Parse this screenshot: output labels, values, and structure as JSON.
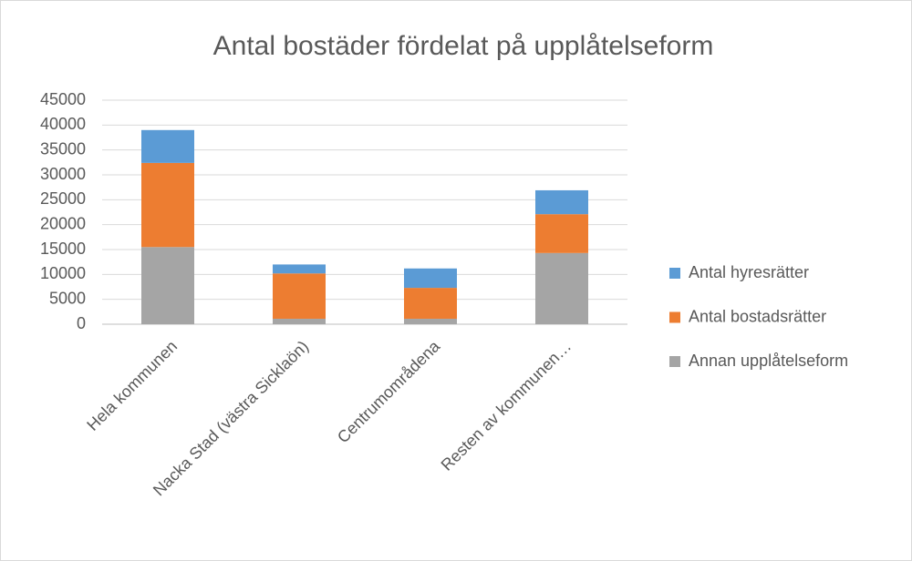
{
  "chart_data": {
    "type": "stacked_bar",
    "title": "Antal bostäder fördelat på upplåtelseform",
    "categories": [
      "Hela kommunen",
      "Nacka Stad (västra Sickla­ön)",
      "Centrumområdena",
      "Resten av kommunen…"
    ],
    "series": [
      {
        "name": "Annan upplåtelseform",
        "color": "#a5a5a5",
        "values": [
          15500,
          1100,
          1100,
          14300
        ]
      },
      {
        "name": "Antal bostadsrätter",
        "color": "#ed7d31",
        "values": [
          16900,
          9100,
          6200,
          7800
        ]
      },
      {
        "name": "Antal hyresrätter",
        "color": "#5b9bd5",
        "values": [
          6600,
          1800,
          3900,
          4800
        ]
      }
    ],
    "ylim": [
      0,
      45000
    ],
    "yticks": [
      0,
      5000,
      10000,
      15000,
      20000,
      25000,
      30000,
      35000,
      40000,
      45000
    ],
    "grid": true,
    "legend": "right"
  }
}
